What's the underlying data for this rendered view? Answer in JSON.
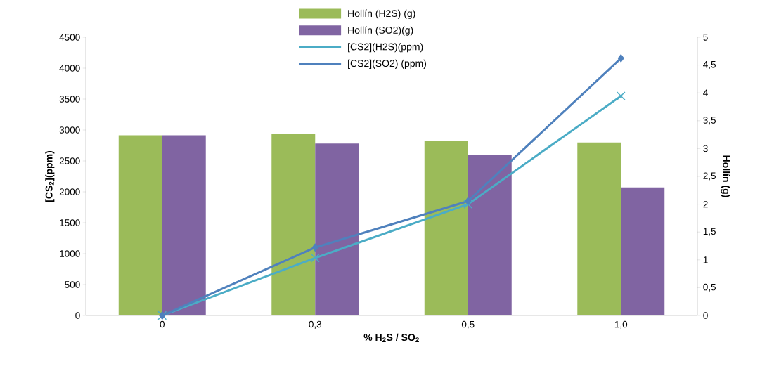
{
  "chart_data": {
    "type": "bar",
    "xlabel": "% H$_{2}$S / SO$_{2}$",
    "ylabel": "[CS$_{2}$](ppm)",
    "y2label": "Hollín (g)",
    "categories": [
      "0",
      "0,3",
      "0,5",
      "1,0"
    ],
    "series": [
      {
        "name": "Hollín (H2S) (g)",
        "color": "#9bbb59",
        "axis": "y2",
        "values": [
          3.24,
          3.26,
          3.14,
          3.11
        ]
      },
      {
        "name": "Hollín (SO2)(g)",
        "color": "#8064a2",
        "axis": "y2",
        "values": [
          3.24,
          3.09,
          2.89,
          2.3
        ]
      },
      {
        "name": "[CS2](H2S)(ppm)",
        "type": "line",
        "marker": "cross",
        "color": "#4bacc6",
        "values": [
          0,
          930,
          1800,
          3550
        ]
      },
      {
        "name": "[CS2](SO2) (ppm)",
        "type": "line",
        "marker": "diamond",
        "color": "#4f81bd",
        "values": [
          0,
          1100,
          1850,
          4160
        ]
      }
    ],
    "ylim": [
      0,
      4500
    ],
    "yticks": [
      0,
      500,
      1000,
      1500,
      2000,
      2500,
      3000,
      3500,
      4000,
      4500
    ],
    "y2lim": [
      0,
      5
    ],
    "y2ticks": [
      0,
      {
        "value": 0.5,
        "label": "0,5"
      },
      1,
      {
        "value": 1.5,
        "label": "1,5"
      },
      2,
      {
        "value": 2.5,
        "label": "2,5"
      },
      3,
      {
        "value": 3.5,
        "label": "3,5"
      },
      4,
      {
        "value": 4.5,
        "label": "4,5"
      },
      5
    ],
    "legend": "top",
    "grid": false
  }
}
